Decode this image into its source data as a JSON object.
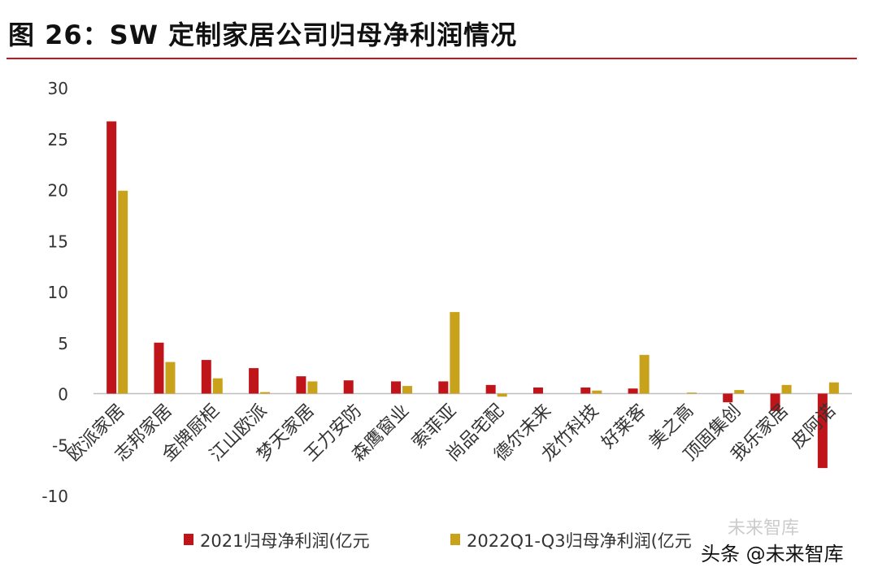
{
  "header": {
    "title": "图 26：SW 定制家居公司归母净利润情况"
  },
  "chart_data": {
    "type": "bar",
    "title": "图 26：SW 定制家居公司归母净利润情况",
    "xlabel": "",
    "ylabel": "",
    "ylim": [
      -10,
      30
    ],
    "yticks": [
      -10,
      -5,
      0,
      5,
      10,
      15,
      20,
      25,
      30
    ],
    "categories": [
      "欧派家居",
      "志邦家居",
      "金牌厨柜",
      "江山欧派",
      "梦天家居",
      "王力安防",
      "森鹰窗业",
      "索菲亚",
      "尚品宅配",
      "德尔未来",
      "龙竹科技",
      "好莱客",
      "美之高",
      "顶固集创",
      "我乐家居",
      "皮阿诺"
    ],
    "series": [
      {
        "name": "2021归母净利润(亿元)",
        "color": "#c0141b",
        "values": [
          26.7,
          5.0,
          3.3,
          2.5,
          1.7,
          1.3,
          1.2,
          1.2,
          0.85,
          0.6,
          0.6,
          0.5,
          0.0,
          -0.85,
          -1.7,
          -7.3
        ]
      },
      {
        "name": "2022Q1-Q3归母净利润(亿元)",
        "color": "#c9a21c",
        "values": [
          19.9,
          3.1,
          1.5,
          0.15,
          1.2,
          0.0,
          0.75,
          8.0,
          -0.3,
          0.0,
          0.3,
          3.8,
          0.1,
          0.35,
          0.85,
          1.1
        ]
      }
    ],
    "legend": [
      {
        "label": "2021归母净利润(亿元"
      },
      {
        "label": "2022Q1-Q3归母净利润(亿元"
      }
    ],
    "legend_position": "bottom"
  },
  "overlay": {
    "watermark": "未来智库",
    "source": "头条 @未来智库"
  }
}
